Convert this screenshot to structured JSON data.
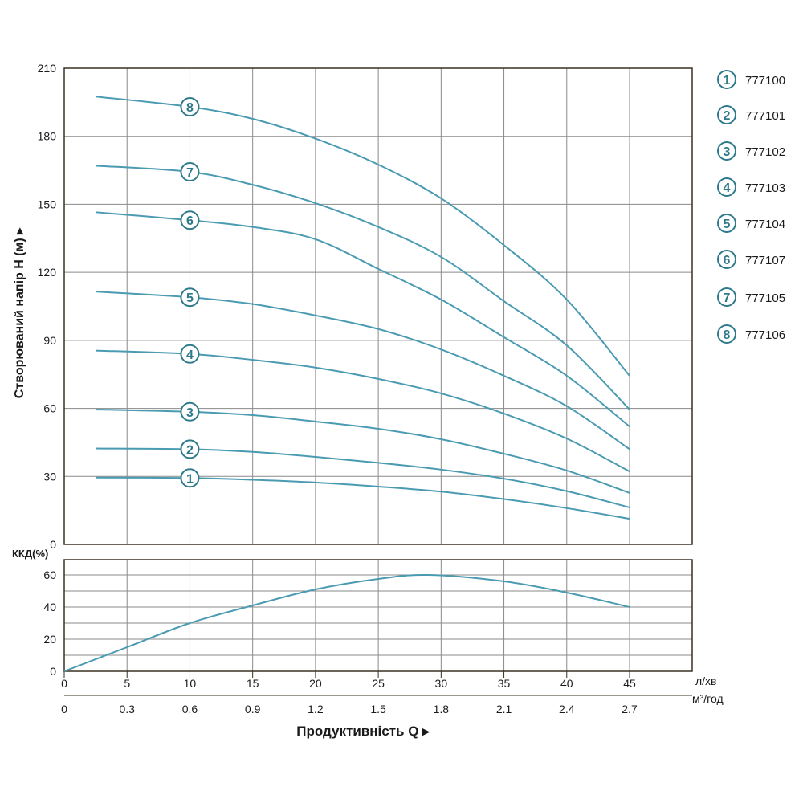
{
  "colors": {
    "curve": "#4a9bb2",
    "marker": "#2e7a8a",
    "grid": "#8a8a8a",
    "frame": "#3a3020",
    "text": "#1a1a1a"
  },
  "chart_data": [
    {
      "type": "line",
      "ylabel": "Створюваний напір H (м) ▸",
      "ylim": [
        0,
        210
      ],
      "xlim": [
        0,
        50
      ],
      "yticks": [
        "0",
        "30",
        "60",
        "90",
        "120",
        "150",
        "180",
        "210"
      ],
      "ytick_values": [
        0,
        30,
        60,
        90,
        120,
        150,
        180,
        210
      ],
      "grid": true,
      "legend": "right",
      "x": [
        2.5,
        10,
        15,
        20,
        25,
        30,
        35,
        40,
        45
      ],
      "series": [
        {
          "name": "777100",
          "marker": "1",
          "values": [
            29.5,
            29.3,
            28.5,
            27.3,
            25.5,
            23.3,
            20,
            16,
            11.3
          ]
        },
        {
          "name": "777101",
          "marker": "2",
          "values": [
            42.3,
            42,
            40.8,
            38.6,
            36,
            33,
            29,
            23.5,
            16.3
          ]
        },
        {
          "name": "777102",
          "marker": "3",
          "values": [
            59.5,
            58.5,
            57,
            54.2,
            51,
            46.4,
            40,
            32.6,
            22.7
          ]
        },
        {
          "name": "777103",
          "marker": "4",
          "values": [
            85.5,
            84,
            81.4,
            78,
            73,
            66.6,
            57.7,
            46.7,
            32.2
          ]
        },
        {
          "name": "777104",
          "marker": "5",
          "values": [
            111.5,
            109,
            106,
            101,
            95,
            86,
            74.4,
            61,
            42
          ]
        },
        {
          "name": "777107",
          "marker": "6",
          "values": [
            146.5,
            143,
            140,
            134.6,
            121.5,
            108,
            91.4,
            74.4,
            52
          ]
        },
        {
          "name": "777105",
          "marker": "7",
          "values": [
            167,
            164.3,
            158.6,
            150.5,
            140,
            126.8,
            107.3,
            87.8,
            59.5
          ]
        },
        {
          "name": "777106",
          "marker": "8",
          "values": [
            197.5,
            193,
            187.7,
            179,
            167.5,
            152.6,
            132,
            108,
            74.4
          ]
        }
      ]
    },
    {
      "type": "line",
      "ylabel": "ККД(%)",
      "ylim": [
        0,
        70
      ],
      "yticks": [
        "0",
        "20",
        "40",
        "60"
      ],
      "ytick_values": [
        0,
        20,
        40,
        60
      ],
      "grid": true,
      "x": [
        0,
        5,
        10,
        15,
        20,
        25,
        29,
        35,
        40,
        45
      ],
      "series": [
        {
          "values": [
            0,
            15,
            30,
            41,
            51,
            57.5,
            60,
            56,
            49,
            40
          ]
        }
      ],
      "xlabel": "Продуктивність  Q ▸",
      "xticks": [
        "0",
        "5",
        "10",
        "15",
        "20",
        "25",
        "30",
        "35",
        "40",
        "45"
      ],
      "xtick_values": [
        0,
        5,
        10,
        15,
        20,
        25,
        30,
        35,
        40,
        45
      ],
      "xunit": "л/хв",
      "xticks2": [
        "0",
        "0.3",
        "0.6",
        "0.9",
        "1.2",
        "1.5",
        "1.8",
        "2.1",
        "2.4",
        "2.7"
      ],
      "xunit2": "м³/год"
    }
  ]
}
